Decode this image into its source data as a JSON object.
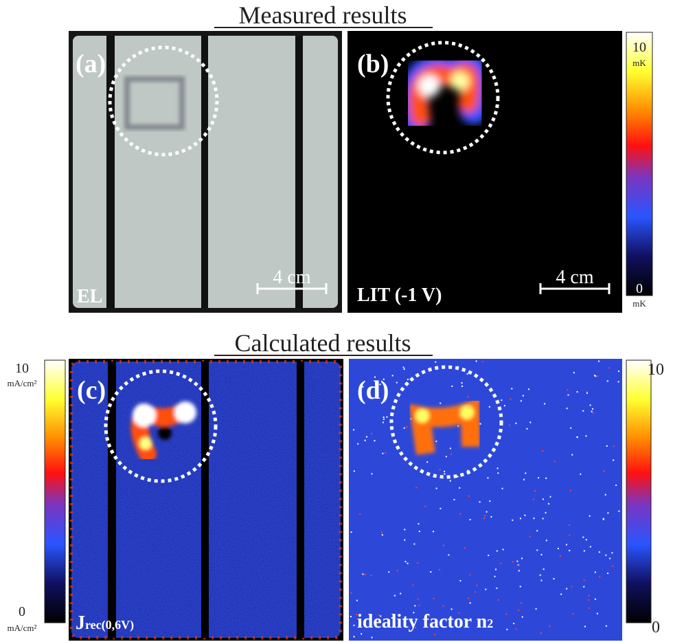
{
  "sections": [
    {
      "title": "Measured results",
      "panels": [
        {
          "label": "(a)",
          "caption": "EL",
          "scale_bar": "4 cm"
        },
        {
          "label": "(b)",
          "caption": "LIT (-1 V)",
          "scale_bar": "4 cm",
          "colorbar": {
            "max": "10",
            "max_unit": "mK",
            "min": "0",
            "min_unit": "mK"
          }
        }
      ]
    },
    {
      "title": "Calculated results",
      "panels": [
        {
          "label": "(c)",
          "caption": "J",
          "caption_sub": "rec(0,6V)",
          "colorbar": {
            "max": "10",
            "max_unit": "mA/cm²",
            "min": "0",
            "min_unit": "mA/cm²"
          }
        },
        {
          "label": "(d)",
          "caption": "ideality factor n",
          "caption_sub": "2",
          "colorbar": {
            "max": "10",
            "min": "0"
          }
        }
      ]
    }
  ]
}
